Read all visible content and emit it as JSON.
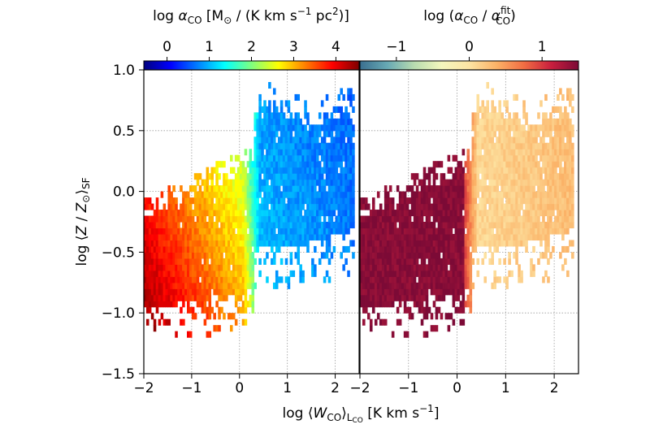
{
  "chart_data": [
    {
      "type": "heatmap",
      "panel": "left",
      "xlabel": "log ⟨W_CO⟩_Lco [K km s⁻¹]",
      "ylabel": "log ⟨Z / Z⊙⟩_SF",
      "xlim": [
        -2.0,
        2.5
      ],
      "ylim": [
        -1.5,
        1.0
      ],
      "x_ticks": [
        "−2",
        "−1",
        "0",
        "1",
        "2"
      ],
      "x_tick_values": [
        -2,
        -1,
        0,
        1,
        2
      ],
      "y_ticks": [
        "−1.5",
        "−1.0",
        "−0.5",
        "0.0",
        "0.5",
        "1.0"
      ],
      "y_tick_values": [
        -1.5,
        -1.0,
        -0.5,
        0.0,
        0.5,
        1.0
      ],
      "grid": true,
      "colorbar": {
        "title_parts": {
          "pre": "log ",
          "alpha": "α",
          "sub": "CO",
          "mid1": " [M",
          "sun": "⊙",
          "mid2": " / (K km s",
          "sup1": "−1",
          "mid3": " pc",
          "sup2": "2",
          "end": ")]"
        },
        "range": [
          -0.55,
          4.55
        ],
        "ticks": [
          "0",
          "1",
          "2",
          "3",
          "4"
        ],
        "tick_values": [
          0,
          1,
          2,
          3,
          4
        ],
        "colormap": "jet",
        "colors": [
          "#00007f",
          "#0000ff",
          "#007fff",
          "#00ffff",
          "#7fff7f",
          "#ffff00",
          "#ff7f00",
          "#ff0000",
          "#7f0000"
        ]
      },
      "trend": "alpha_CO decreases from ~3.5 at low W_CO (x<0) to ~0.6 at high W_CO (x>0.3)"
    },
    {
      "type": "heatmap",
      "panel": "right",
      "xlim": [
        -2.0,
        2.5
      ],
      "ylim": [
        -1.5,
        1.0
      ],
      "x_ticks": [
        "−2",
        "−1",
        "0",
        "1",
        "2"
      ],
      "x_tick_values": [
        -2,
        -1,
        0,
        1,
        2
      ],
      "grid": true,
      "colorbar": {
        "title_parts": {
          "pre": "log (",
          "alpha1": "α",
          "sub1": "CO",
          "mid": " / ",
          "alpha2": "α",
          "sup": "fit",
          "sub2": "CO",
          "end": ")"
        },
        "range": [
          -1.5,
          1.5
        ],
        "ticks": [
          "−1",
          "0",
          "1"
        ],
        "tick_values": [
          -1,
          0,
          1
        ],
        "colormap": "Spectral_r-like (blue → cream → dark red)",
        "colors": [
          "#3a6f8f",
          "#67a9b4",
          "#b9dcb0",
          "#f4f7bd",
          "#fde4a3",
          "#fbb267",
          "#f26d43",
          "#c81f3e",
          "#7c0a36"
        ]
      },
      "trend": "residual ~1.3 (dark red) at x<0, ~0.1 (cream/orange) at x>0.3"
    }
  ]
}
